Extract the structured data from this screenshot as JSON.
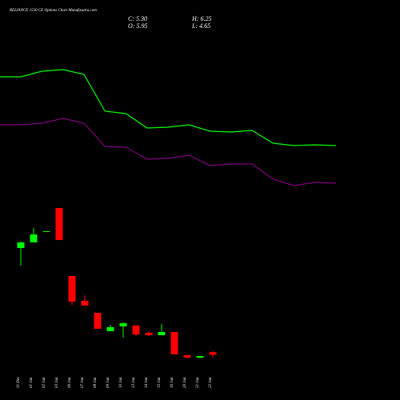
{
  "chart_data": [
    {
      "type": "candlestick",
      "title": "RELIANCE 1550  CE Options  Chart Munafasutra.com",
      "annotations": [
        "C: 5.30",
        "H: 6.25",
        "O: 5.95",
        "L: 4.65"
      ],
      "categories": [
        "31 Dec",
        "01 Jan",
        "02 Jan",
        "03 Jan",
        "06 Jan",
        "07 Jan",
        "08 Jan",
        "09 Jan",
        "10 Jan",
        "13 Jan",
        "14 Jan",
        "15 Jan",
        "16 Jan",
        "20 Jan",
        "21 Jan",
        "22 Jan"
      ],
      "open": [
        32,
        33.4,
        36.1,
        42,
        25,
        18.8,
        15.8,
        11.2,
        12.4,
        12.6,
        10.8,
        10.2,
        11,
        5.2,
        4.6,
        5.95
      ],
      "high": [
        33.6,
        37,
        36.2,
        42,
        25,
        20.2,
        15.8,
        12.8,
        13.4,
        12.8,
        11.2,
        13,
        11,
        5.2,
        5,
        6.25
      ],
      "low": [
        27.6,
        33.4,
        36.1,
        34,
        17.6,
        17.6,
        11.8,
        11.2,
        9.6,
        10,
        10,
        10.2,
        5.4,
        4.4,
        4.4,
        4.65
      ],
      "close": [
        33.4,
        35.4,
        36.2,
        34,
        18.6,
        17.6,
        11.8,
        12.2,
        13.2,
        10.4,
        10.2,
        11,
        5.4,
        4.6,
        5,
        5.3
      ],
      "up_color": "#00ff00",
      "down_color": "#ff0000",
      "ylim": [
        0,
        94
      ]
    },
    {
      "type": "line",
      "x": [
        0,
        1,
        2,
        3,
        4,
        5,
        6,
        7,
        8,
        9,
        10,
        11,
        12,
        13,
        14,
        15,
        16
      ],
      "xlim": [
        0,
        16
      ],
      "ylim": [
        0,
        94
      ],
      "series": [
        {
          "color": "#00ff00",
          "values": [
            74.8,
            74.8,
            76.2,
            76.6,
            75.4,
            66.2,
            65.6,
            62,
            62.2,
            62.8,
            61.2,
            61,
            61.4,
            58.2,
            57.6,
            57.8,
            57.6
          ]
        },
        {
          "color": "#800080",
          "values": [
            62.8,
            62.8,
            63.2,
            64.4,
            63.2,
            57.4,
            57.2,
            54.2,
            54.4,
            55.2,
            52.6,
            53,
            53,
            49.2,
            47.6,
            48.4,
            48.2
          ]
        }
      ]
    }
  ]
}
